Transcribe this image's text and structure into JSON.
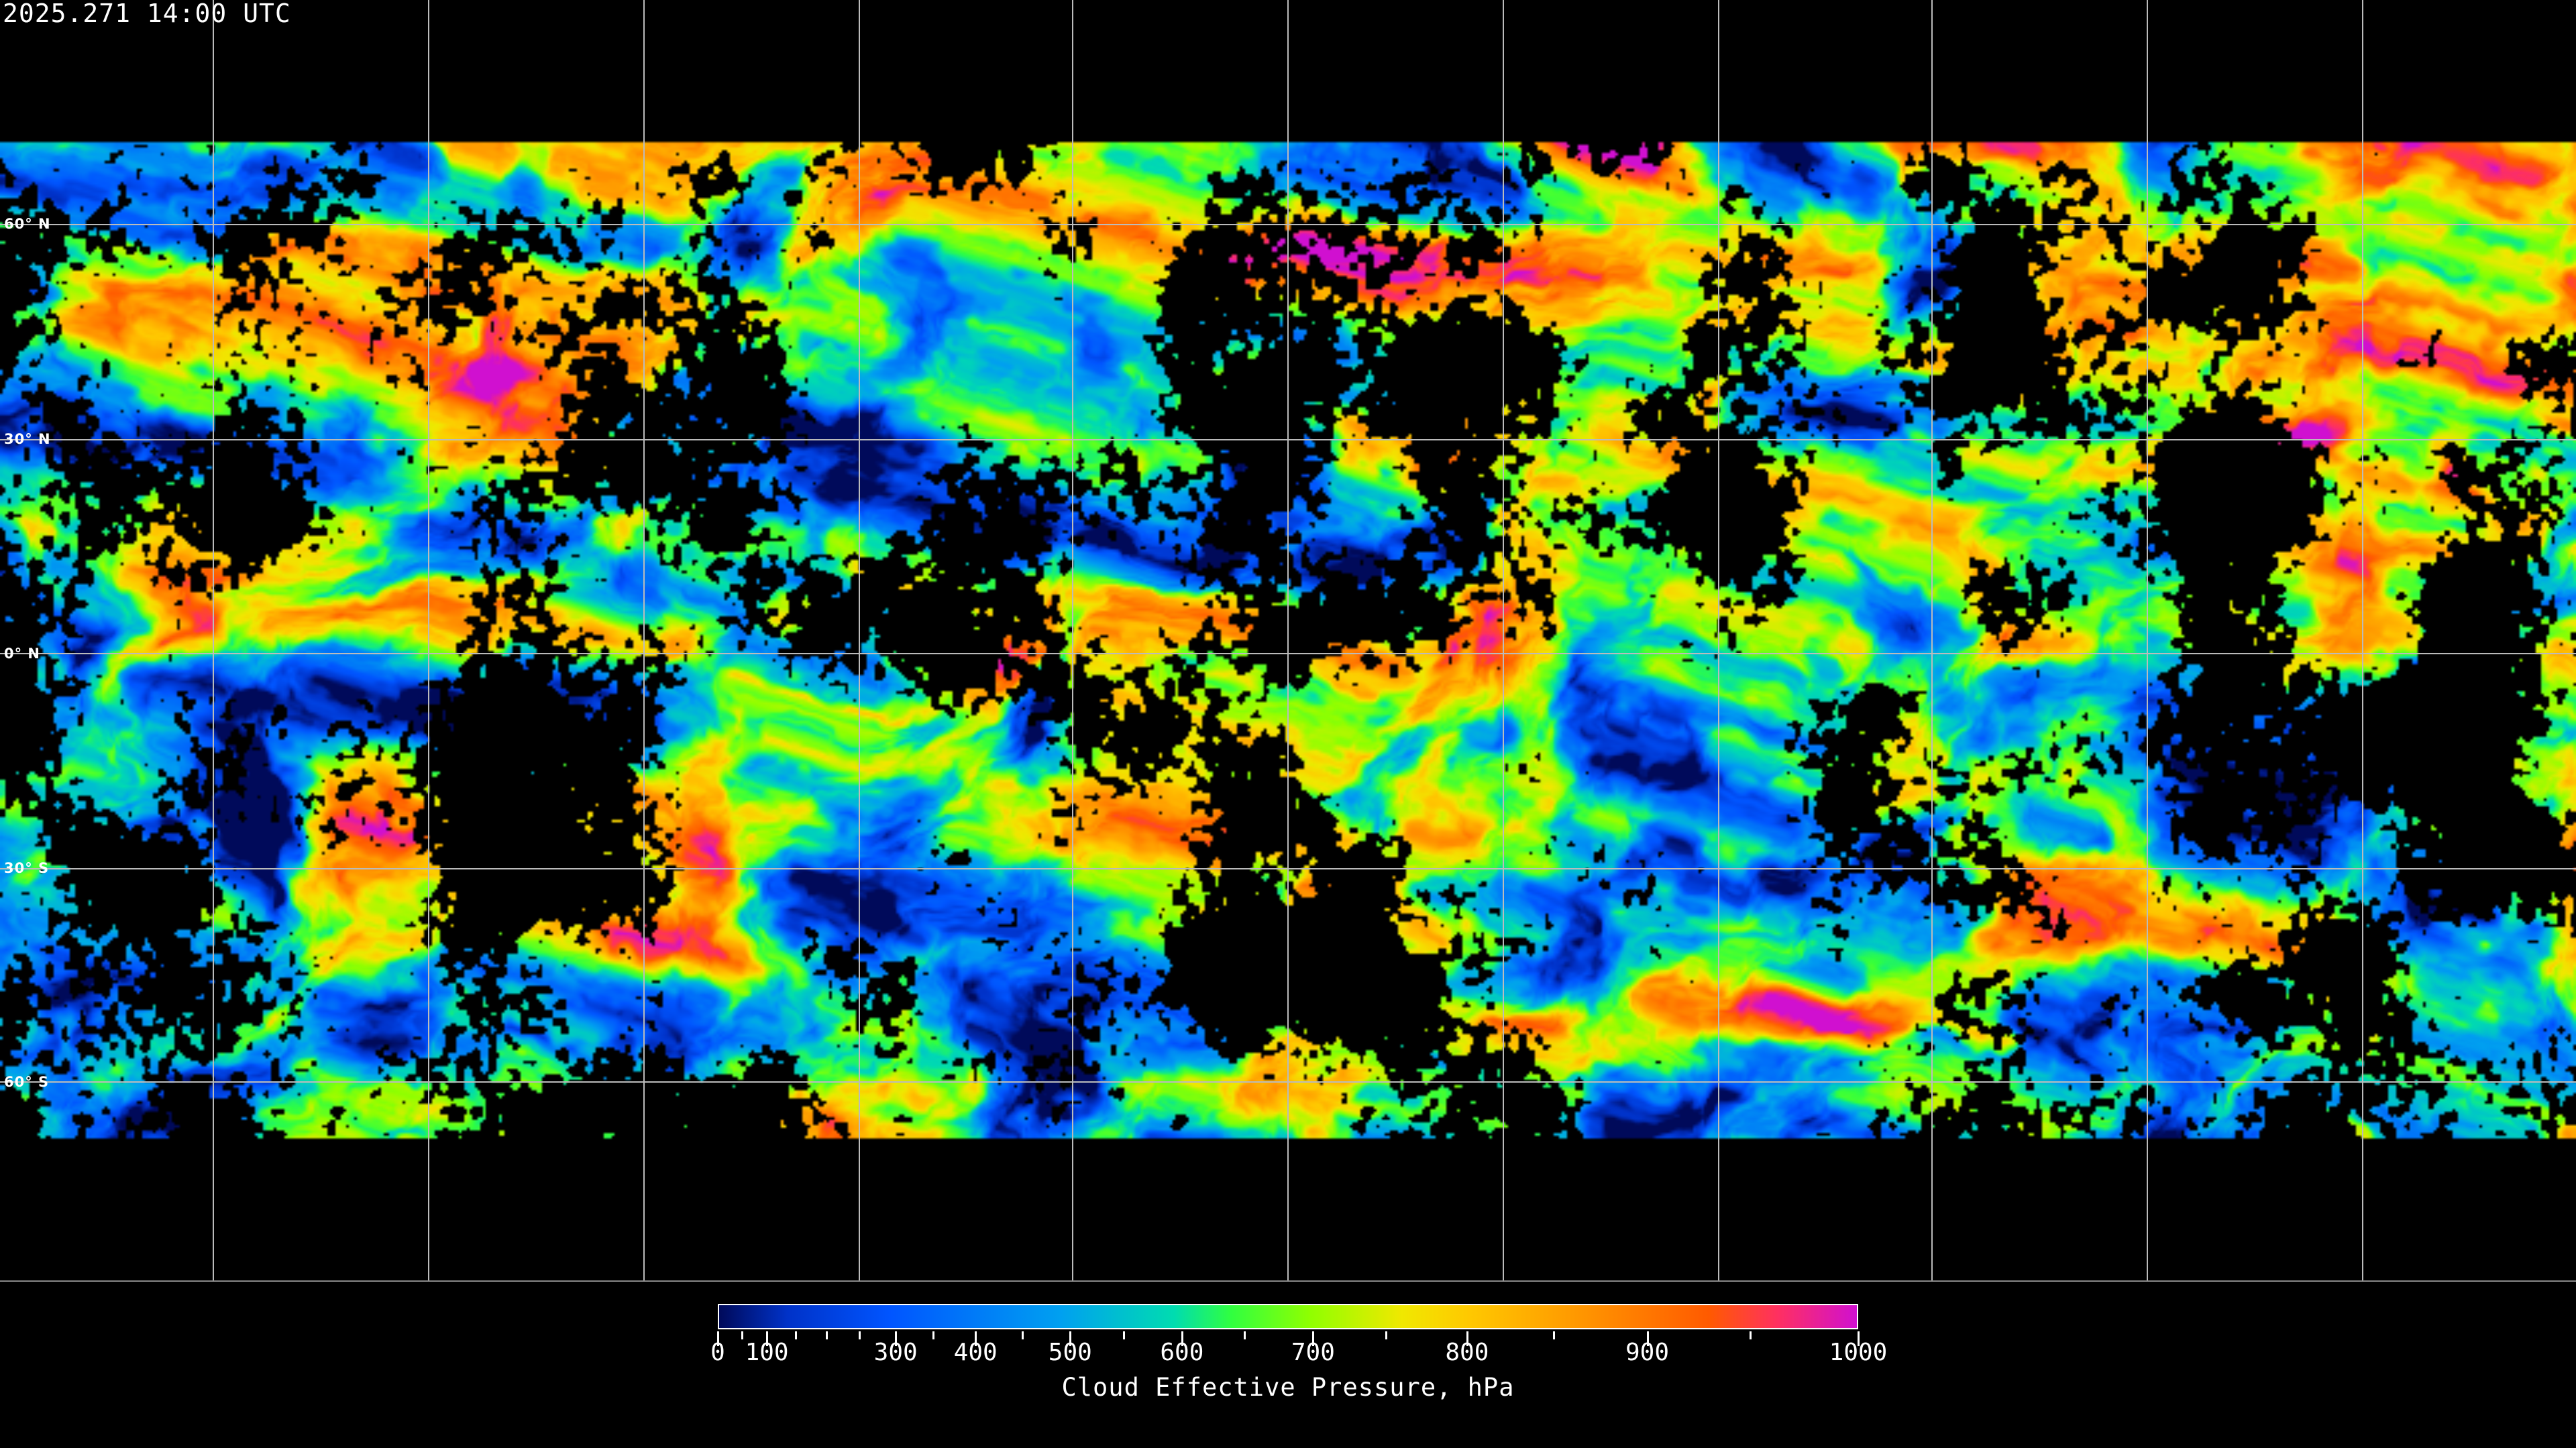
{
  "header": {
    "timestamp": "2025.271 14:00 UTC"
  },
  "map": {
    "projection": "equirectangular",
    "latitude_labels": [
      "60° N",
      "30° N",
      "0° N",
      "30° S",
      "60° S"
    ],
    "gridlines": true,
    "coastlines_color": "#ffffff",
    "no_data_color": "#000000"
  },
  "colorbar": {
    "label": "Cloud Effective Pressure, hPa",
    "range": [
      0,
      1000
    ],
    "tick_labels": [
      "0",
      "100",
      "300",
      "400",
      "500",
      "600",
      "700",
      "800",
      "900",
      "1000"
    ],
    "colors": [
      "#000a5a",
      "#0032c8",
      "#0055ff",
      "#00a0f0",
      "#00dcb0",
      "#30ff40",
      "#90ff00",
      "#f0e800",
      "#ffc800",
      "#ff9a00",
      "#ff5a00",
      "#ff3060",
      "#d010d0"
    ]
  }
}
